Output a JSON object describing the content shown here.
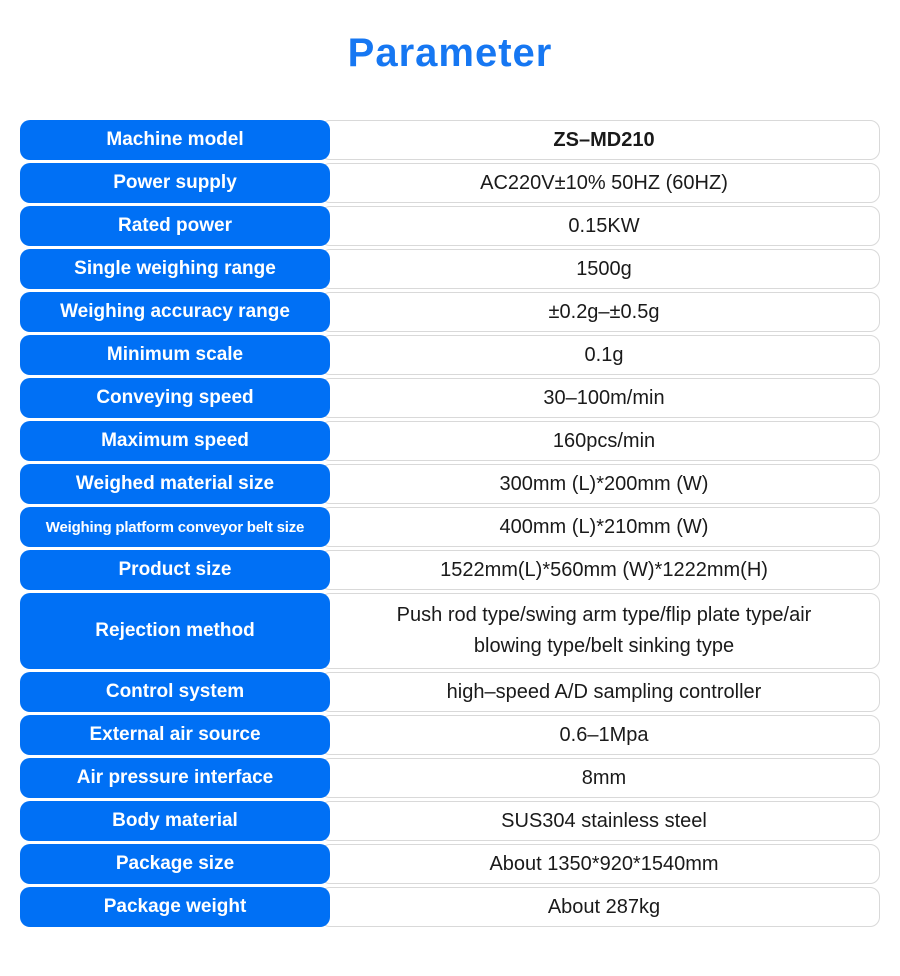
{
  "title": "Parameter",
  "colors": {
    "title_blue": "#1677f2",
    "cell_blue": "#0070f5",
    "border_gray": "#d9d9d9",
    "label_text": "#ffffff",
    "value_text": "#1a1a1a"
  },
  "table": {
    "rows": [
      {
        "label": "Machine model",
        "value": "ZS–MD210",
        "value_bold": true
      },
      {
        "label": "Power supply",
        "value": "AC220V±10% 50HZ (60HZ)"
      },
      {
        "label": "Rated power",
        "value": "0.15KW"
      },
      {
        "label": "Single weighing range",
        "value": "1500g"
      },
      {
        "label": "Weighing accuracy range",
        "value": "±0.2g–±0.5g"
      },
      {
        "label": "Minimum scale",
        "value": "0.1g"
      },
      {
        "label": "Conveying speed",
        "value": "30–100m/min"
      },
      {
        "label": "Maximum speed",
        "value": "160pcs/min"
      },
      {
        "label": "Weighed material size",
        "value": "300mm (L)*200mm (W)"
      },
      {
        "label": "Weighing platform conveyor belt size",
        "value": "400mm (L)*210mm (W)",
        "small_label": true
      },
      {
        "label": "Product size",
        "value": "1522mm(L)*560mm (W)*1222mm(H)"
      },
      {
        "label": "Rejection method",
        "value": "Push rod type/swing arm type/flip plate type/air blowing type/belt sinking type",
        "tall": true
      },
      {
        "label": "Control system",
        "value": "high–speed A/D sampling controller"
      },
      {
        "label": "External air source",
        "value": "0.6–1Mpa"
      },
      {
        "label": "Air pressure interface",
        "value": "8mm"
      },
      {
        "label": "Body material",
        "value": "SUS304 stainless steel"
      },
      {
        "label": "Package size",
        "value": "About 1350*920*1540mm"
      },
      {
        "label": "Package weight",
        "value": "About 287kg"
      }
    ]
  }
}
